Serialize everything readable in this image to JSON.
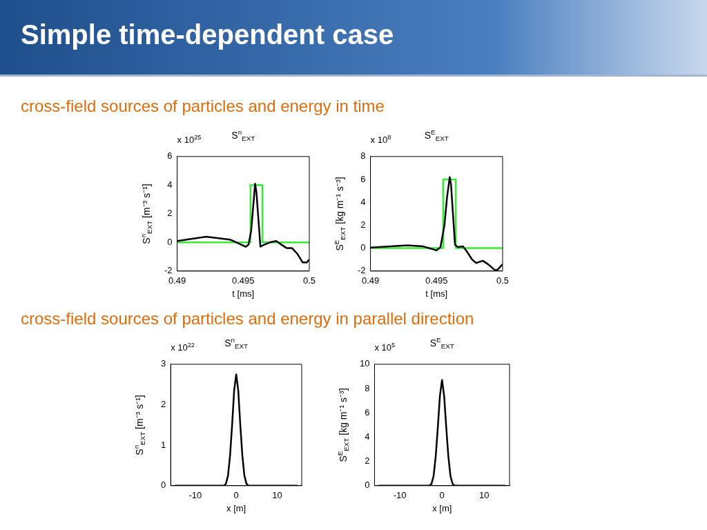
{
  "chart_data": [
    {
      "type": "line",
      "title": "S$^{n}$$_{EXT}$",
      "subtitle": "cross-field sources of particles and energy in time",
      "xlabel": "t [ms]",
      "ylabel": "S$^{n}$$_{EXT}$ [m⁻³ s⁻¹]",
      "annotations": [
        "x 10$^{25}$",
        "Simple time-dependent case"
      ],
      "xlim": [
        0.49,
        0.5
      ],
      "xticks": [
        0.49,
        0.495,
        0.5
      ],
      "ylim": [
        -2,
        6
      ],
      "yticks": [
        -2,
        0,
        2,
        4,
        6
      ],
      "grid": false,
      "marker": "none",
      "line_style": "solid",
      "series": [
        {
          "type": "line",
          "color": "#000000",
          "x": [
            0.49,
            0.4922,
            0.494,
            0.4945,
            0.4952,
            0.4954,
            0.4956,
            0.4958,
            0.4959,
            0.496,
            0.4962,
            0.4963,
            0.4965,
            0.497,
            0.4975,
            0.4978,
            0.4983,
            0.4987,
            0.4991,
            0.4995,
            0.4998,
            0.5
          ],
          "values": [
            0.1,
            0.4,
            0.2,
            0,
            -0.3,
            -0.15,
            0.8,
            3,
            4.1,
            3.5,
            1,
            -0.3,
            -0.2,
            0,
            0.1,
            -0.1,
            -0.4,
            -0.4,
            -0.8,
            -1.4,
            -1.4,
            -1.2
          ]
        },
        {
          "type": "step",
          "color": "#33ee33",
          "x": [
            0.49,
            0.49555,
            0.49645,
            0.5
          ],
          "values": [
            0,
            4,
            0,
            0
          ]
        }
      ]
    },
    {
      "type": "line",
      "title": "S$^{E}$$_{EXT}$",
      "xlabel": "t [ms]",
      "ylabel": "S$^{E}$$_{EXT}$ [kg m⁻¹ s⁻³]",
      "annotations": [
        "x 10$^{8}$"
      ],
      "xlim": [
        0.49,
        0.5
      ],
      "xticks": [
        0.49,
        0.495,
        0.5
      ],
      "ylim": [
        -2,
        8
      ],
      "yticks": [
        -2,
        0,
        2,
        4,
        6,
        8
      ],
      "grid": false,
      "marker": "none",
      "line_style": "solid",
      "series": [
        {
          "type": "line",
          "color": "#000000",
          "x": [
            0.49,
            0.4928,
            0.494,
            0.4946,
            0.495,
            0.4953,
            0.4956,
            0.4958,
            0.496,
            0.4961,
            0.4963,
            0.4964,
            0.4966,
            0.497,
            0.4973,
            0.4977,
            0.498,
            0.4985,
            0.4989,
            0.4994,
            0.4996,
            0.5
          ],
          "values": [
            0.05,
            0.25,
            0.15,
            -0.05,
            -0.2,
            0.1,
            2,
            4.5,
            6.2,
            5.5,
            2,
            0.3,
            0.1,
            0.15,
            -0.3,
            -1,
            -1.3,
            -1.1,
            -1.4,
            -1.9,
            -1.9,
            -1.4
          ]
        },
        {
          "type": "step",
          "color": "#33ee33",
          "x": [
            0.49,
            0.4955,
            0.49645,
            0.5
          ],
          "values": [
            0,
            6,
            0,
            0
          ]
        }
      ]
    },
    {
      "type": "line",
      "title": "S$^{n}$$_{EXT}$",
      "subtitle": "cross-field sources of particles and energy in parallel direction",
      "xlabel": "x [m]",
      "ylabel": "S$^{n}$$_{EXT}$ [m⁻³ s⁻¹]",
      "annotations": [
        "x 10$^{22}$"
      ],
      "xlim": [
        -16,
        16
      ],
      "xticks": [
        -10,
        0,
        10
      ],
      "ylim": [
        0,
        3
      ],
      "yticks": [
        0,
        1,
        2,
        3
      ],
      "grid": false,
      "marker": "none",
      "line_style": "solid",
      "series": [
        {
          "type": "line",
          "color": "#000000",
          "x": [
            -15,
            -3,
            -2.5,
            -2,
            -1.5,
            -1,
            -0.5,
            0,
            0.5,
            1,
            1.5,
            2,
            2.5,
            3,
            15
          ],
          "values": [
            0,
            0,
            0.05,
            0.25,
            0.75,
            1.5,
            2.35,
            2.75,
            2.35,
            1.5,
            0.75,
            0.25,
            0.05,
            0,
            0
          ]
        }
      ]
    },
    {
      "type": "line",
      "title": "S$^{E}$$_{EXT}$",
      "xlabel": "x [m]",
      "ylabel": "S$^{E}$$_{EXT}$ [kg m⁻¹ s⁻³]",
      "annotations": [
        "x 10$^{5}$"
      ],
      "xlim": [
        -16,
        16
      ],
      "xticks": [
        -10,
        0,
        10
      ],
      "ylim": [
        0,
        10
      ],
      "yticks": [
        0,
        2,
        4,
        6,
        8,
        10
      ],
      "grid": false,
      "marker": "none",
      "line_style": "solid",
      "series": [
        {
          "type": "line",
          "color": "#000000",
          "x": [
            -15,
            -3,
            -2.5,
            -2,
            -1.5,
            -1,
            -0.5,
            0,
            0.5,
            1,
            1.5,
            2,
            2.5,
            3,
            15
          ],
          "values": [
            0,
            0,
            0.15,
            0.8,
            2.4,
            4.8,
            7.4,
            8.7,
            7.4,
            4.8,
            2.4,
            0.8,
            0.15,
            0,
            0
          ]
        }
      ]
    }
  ]
}
